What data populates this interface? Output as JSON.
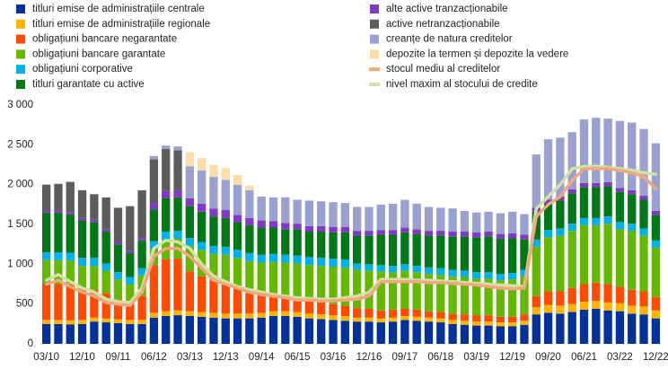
{
  "chart_data": {
    "type": "bar",
    "stacked": true,
    "categories": [
      "03/10",
      null,
      null,
      "12/10",
      null,
      null,
      "09/11",
      null,
      null,
      "06/12",
      null,
      null,
      "03/13",
      null,
      null,
      "12/13",
      null,
      null,
      "09/14",
      null,
      null,
      "06/15",
      null,
      null,
      "03/16",
      null,
      null,
      "12/16",
      null,
      null,
      "09/17",
      null,
      null,
      "06/18",
      null,
      null,
      "03/19",
      null,
      null,
      "12/19",
      null,
      null,
      "09/20",
      null,
      null,
      "06/21",
      null,
      null,
      "03/22",
      null,
      null,
      "12/22"
    ],
    "ylim": [
      0,
      3000
    ],
    "yticks": [
      0,
      500,
      {
        "value": 1000,
        "label": "1 000"
      },
      {
        "value": 1500,
        "label": "1 500"
      },
      {
        "value": 2000,
        "label": "2 000"
      },
      {
        "value": 2500,
        "label": "2 500"
      },
      {
        "value": 3000,
        "label": "3 000"
      }
    ],
    "grid": false,
    "series": [
      {
        "name": "titluri emise de administrațiile centrale",
        "color": "#003299",
        "values": [
          250,
          250,
          245,
          250,
          280,
          270,
          260,
          250,
          250,
          330,
          350,
          360,
          350,
          340,
          330,
          320,
          320,
          320,
          330,
          350,
          350,
          340,
          320,
          310,
          300,
          290,
          280,
          280,
          270,
          280,
          300,
          290,
          280,
          270,
          250,
          240,
          230,
          230,
          220,
          220,
          240,
          370,
          390,
          380,
          400,
          430,
          440,
          420,
          410,
          380,
          370,
          320
        ]
      },
      {
        "name": "titluri emise de administrațiile regionale",
        "color": "#ffb400",
        "values": [
          50,
          50,
          50,
          50,
          50,
          50,
          50,
          50,
          50,
          60,
          60,
          60,
          60,
          60,
          60,
          60,
          60,
          60,
          60,
          60,
          60,
          60,
          60,
          60,
          60,
          60,
          50,
          50,
          50,
          50,
          50,
          50,
          50,
          50,
          50,
          50,
          50,
          50,
          50,
          50,
          50,
          90,
          100,
          100,
          100,
          100,
          100,
          100,
          100,
          100,
          100,
          100
        ]
      },
      {
        "name": "obligațiuni bancare negarantate",
        "color": "#ff4b00",
        "values": [
          450,
          450,
          450,
          380,
          350,
          320,
          250,
          200,
          300,
          600,
          650,
          650,
          500,
          450,
          400,
          380,
          320,
          260,
          230,
          200,
          180,
          170,
          160,
          150,
          140,
          130,
          120,
          110,
          100,
          100,
          90,
          90,
          80,
          80,
          80,
          80,
          80,
          80,
          70,
          70,
          80,
          140,
          170,
          180,
          200,
          220,
          230,
          230,
          210,
          200,
          190,
          170
        ]
      },
      {
        "name": "obligațiuni bancare garantate",
        "color": "#65b800",
        "values": [
          300,
          300,
          300,
          300,
          300,
          280,
          250,
          250,
          260,
          200,
          250,
          250,
          320,
          330,
          340,
          360,
          380,
          400,
          400,
          420,
          430,
          440,
          450,
          460,
          470,
          480,
          480,
          480,
          490,
          470,
          480,
          470,
          470,
          470,
          470,
          470,
          460,
          460,
          460,
          470,
          480,
          620,
          680,
          700,
          720,
          740,
          720,
          760,
          720,
          740,
          700,
          620
        ]
      },
      {
        "name": "obligațiuni corporative",
        "color": "#00b1ea",
        "values": [
          100,
          100,
          100,
          100,
          100,
          90,
          90,
          90,
          90,
          100,
          100,
          100,
          100,
          100,
          100,
          100,
          100,
          100,
          100,
          100,
          100,
          100,
          100,
          100,
          100,
          100,
          80,
          80,
          80,
          80,
          80,
          80,
          80,
          80,
          80,
          80,
          80,
          80,
          80,
          80,
          80,
          90,
          90,
          90,
          90,
          90,
          90,
          90,
          90,
          90,
          90,
          90
        ]
      },
      {
        "name": "titluri garantate cu active",
        "color": "#007816",
        "values": [
          500,
          500,
          480,
          470,
          450,
          400,
          350,
          300,
          350,
          400,
          420,
          420,
          400,
          380,
          370,
          360,
          350,
          350,
          340,
          330,
          320,
          330,
          320,
          330,
          330,
          340,
          350,
          360,
          380,
          390,
          400,
          400,
          400,
          410,
          420,
          430,
          440,
          450,
          440,
          440,
          380,
          350,
          330,
          350,
          380,
          390,
          390,
          380,
          380,
          370,
          360,
          320
        ]
      },
      {
        "name": "alte active tranzacționabile",
        "color": "#8139c6",
        "values": [
          30,
          30,
          30,
          30,
          30,
          30,
          30,
          30,
          30,
          80,
          90,
          90,
          100,
          100,
          100,
          100,
          90,
          90,
          90,
          80,
          80,
          70,
          70,
          70,
          70,
          70,
          60,
          60,
          60,
          60,
          60,
          60,
          60,
          60,
          60,
          60,
          60,
          60,
          60,
          60,
          60,
          50,
          50,
          50,
          50,
          50,
          50,
          50,
          50,
          50,
          50,
          50
        ]
      },
      {
        "name": "active netranzacționabile",
        "color": "#5c5c5c",
        "values": [
          320,
          330,
          380,
          350,
          320,
          400,
          430,
          560,
          600,
          550,
          530,
          500,
          0,
          0,
          0,
          0,
          0,
          0,
          0,
          0,
          0,
          0,
          0,
          0,
          0,
          0,
          0,
          0,
          0,
          0,
          0,
          0,
          0,
          0,
          0,
          0,
          0,
          0,
          0,
          0,
          0,
          0,
          0,
          0,
          0,
          0,
          0,
          0,
          0,
          0,
          0,
          0
        ]
      },
      {
        "name": "creanțe de natura creditelor",
        "color": "#98a1d0",
        "values": [
          0,
          0,
          0,
          0,
          0,
          0,
          0,
          0,
          0,
          40,
          40,
          50,
          400,
          420,
          400,
          380,
          380,
          350,
          300,
          300,
          320,
          300,
          320,
          310,
          310,
          300,
          300,
          300,
          320,
          330,
          350,
          320,
          300,
          290,
          290,
          260,
          250,
          250,
          260,
          270,
          260,
          670,
          760,
          740,
          720,
          800,
          820,
          800,
          840,
          850,
          840,
          850
        ]
      },
      {
        "name": "depozite la termen și depozite la vedere",
        "color": "#fdddA7",
        "values": [
          0,
          0,
          0,
          0,
          0,
          0,
          0,
          0,
          0,
          0,
          0,
          0,
          180,
          150,
          150,
          150,
          120,
          60,
          0,
          0,
          0,
          0,
          0,
          0,
          0,
          0,
          0,
          0,
          0,
          0,
          0,
          0,
          0,
          0,
          0,
          0,
          0,
          0,
          0,
          0,
          0,
          0,
          0,
          0,
          0,
          0,
          0,
          0,
          0,
          0,
          0,
          0
        ]
      },
      {
        "name": "stocul mediu al creditelor",
        "color": "#f3a77e",
        "type": "line",
        "values": [
          750,
          800,
          720,
          650,
          600,
          520,
          500,
          480,
          650,
          1100,
          1200,
          1200,
          1100,
          950,
          800,
          750,
          700,
          650,
          620,
          600,
          580,
          550,
          550,
          540,
          540,
          550,
          560,
          600,
          780,
          780,
          780,
          780,
          770,
          770,
          760,
          750,
          740,
          720,
          700,
          690,
          700,
          1600,
          1750,
          1850,
          2050,
          2200,
          2200,
          2200,
          2180,
          2150,
          2100,
          1950
        ]
      },
      {
        "name": "nivel maxim al stocului de credite",
        "color": "#cfe3a6",
        "type": "line",
        "values": [
          800,
          870,
          780,
          700,
          650,
          560,
          530,
          520,
          700,
          1200,
          1300,
          1280,
          1200,
          1000,
          850,
          780,
          720,
          680,
          650,
          620,
          600,
          580,
          570,
          560,
          560,
          580,
          600,
          650,
          810,
          810,
          810,
          800,
          800,
          790,
          780,
          770,
          760,
          750,
          740,
          730,
          720,
          1700,
          1850,
          2000,
          2200,
          2230,
          2230,
          2220,
          2200,
          2180,
          2150,
          2130
        ]
      }
    ]
  }
}
